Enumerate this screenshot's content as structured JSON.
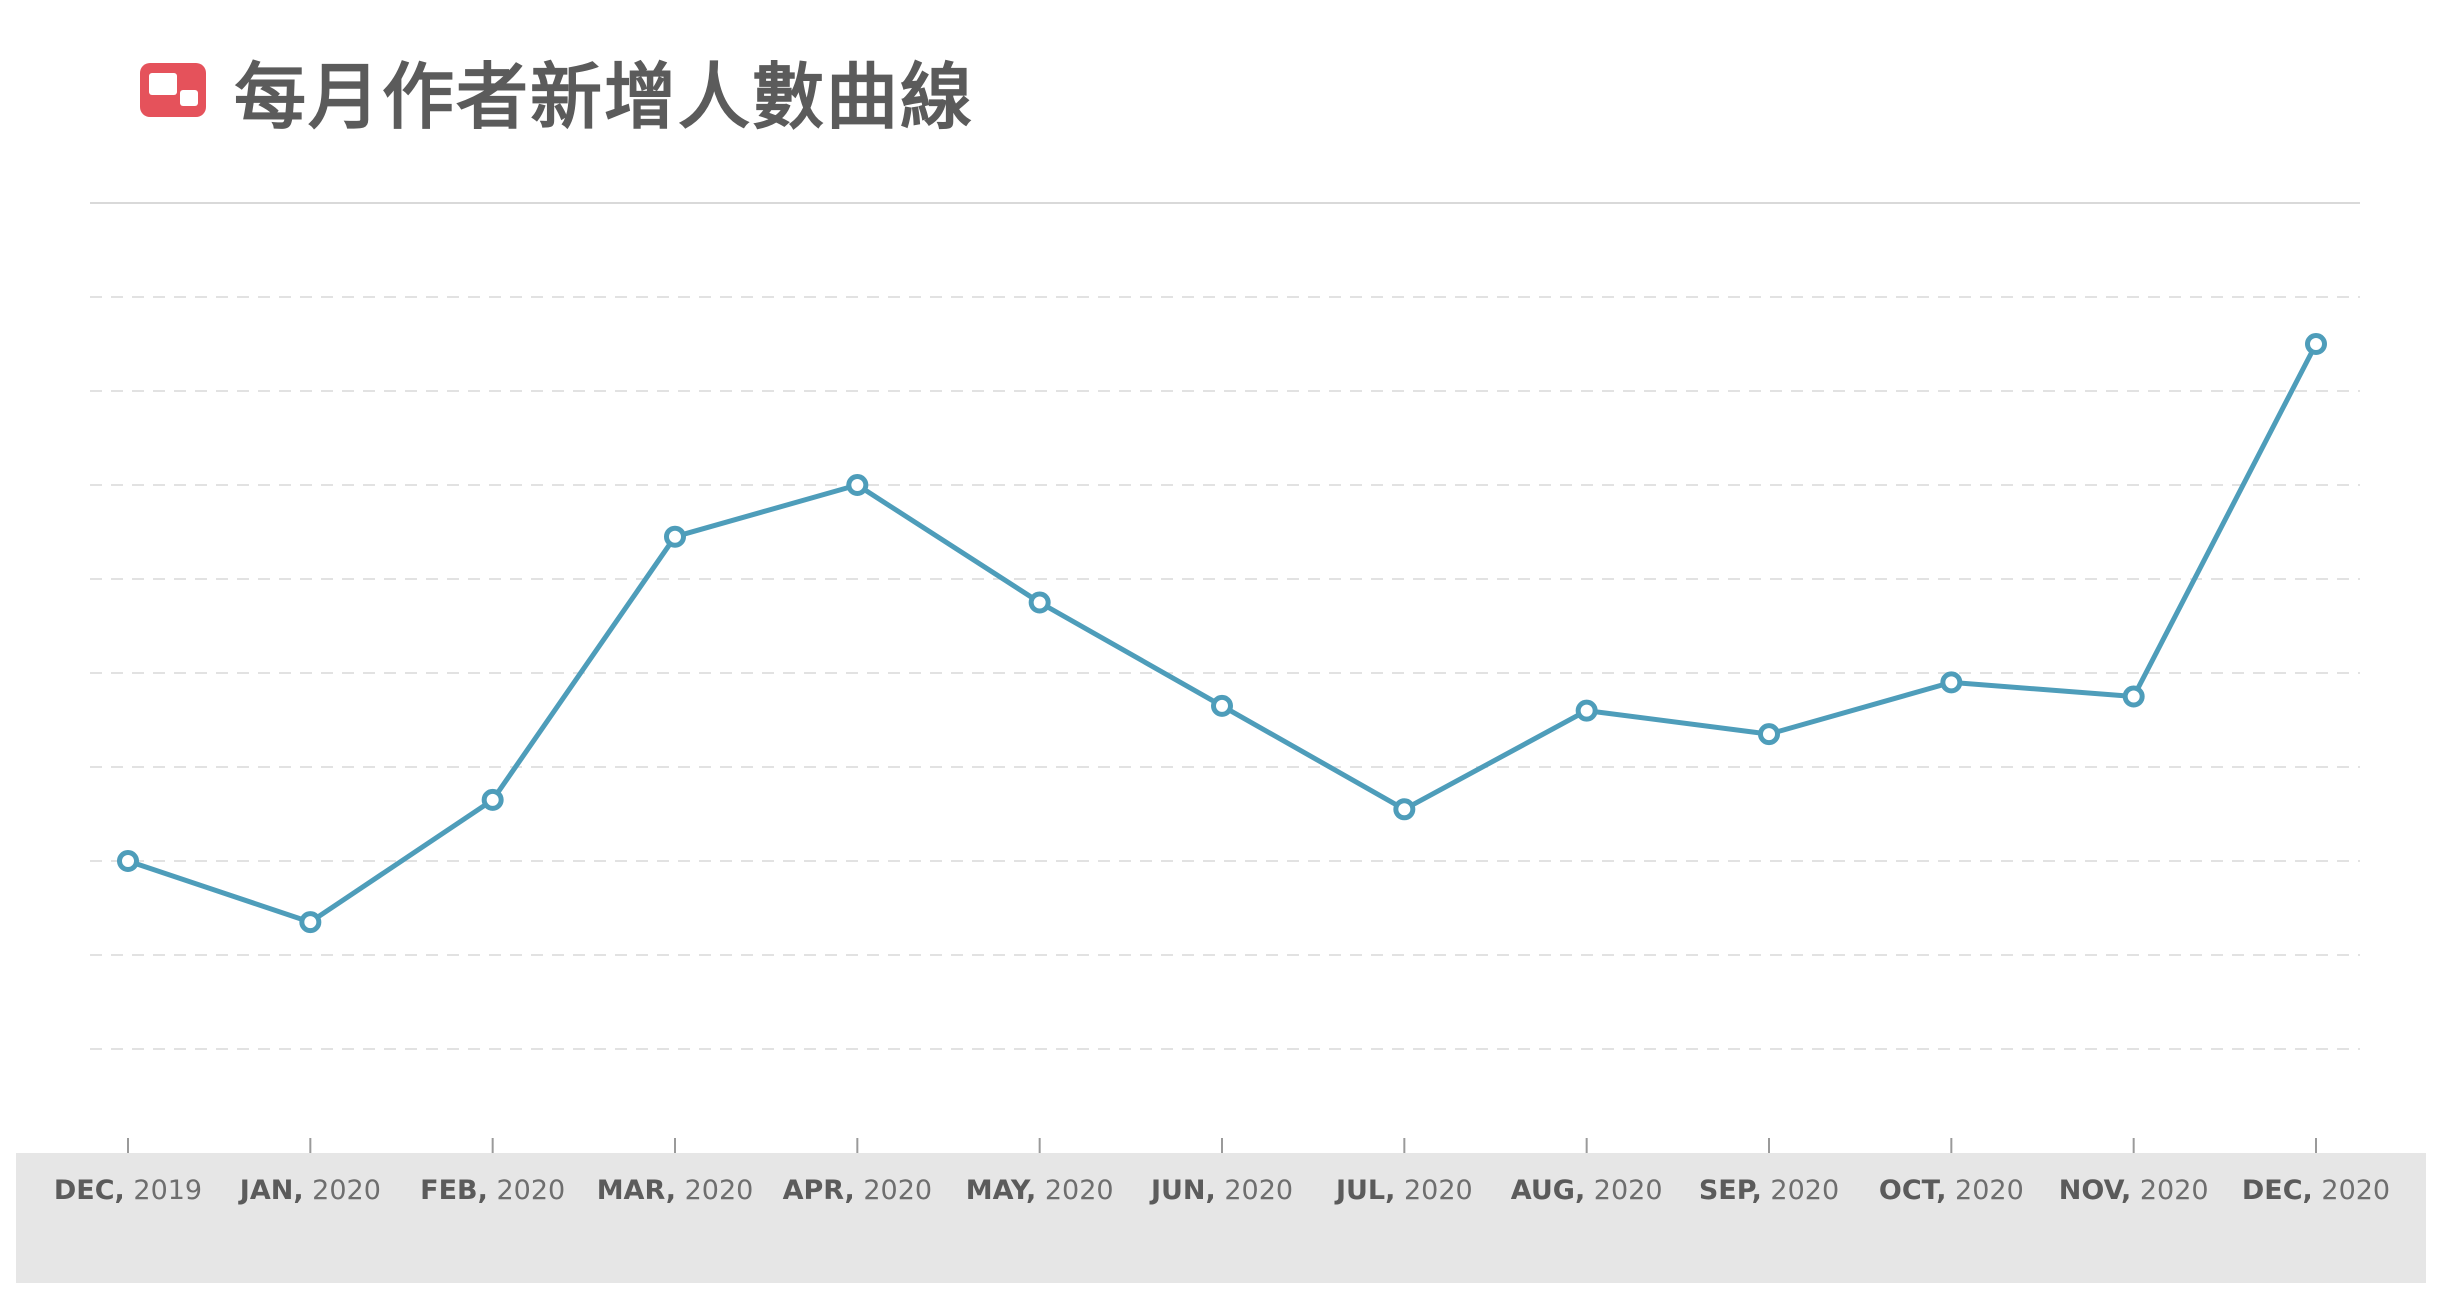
{
  "title": "每月作者新增人數曲線",
  "title_icon": "chart-window-icon",
  "colors": {
    "accent_icon": "#e5525b",
    "line": "#4e9dba",
    "grid": "#d9d9d9",
    "axis_band": "#e6e6e6",
    "title_text": "#5b5b5b"
  },
  "chart_data": {
    "type": "line",
    "title": "每月作者新增人數曲線",
    "xlabel": "",
    "ylabel": "",
    "ylim": [
      0,
      10
    ],
    "grid": true,
    "legend": "none",
    "categories": [
      {
        "month": "DEC,",
        "year": "2019"
      },
      {
        "month": "JAN,",
        "year": "2020"
      },
      {
        "month": "FEB,",
        "year": "2020"
      },
      {
        "month": "MAR,",
        "year": "2020"
      },
      {
        "month": "APR,",
        "year": "2020"
      },
      {
        "month": "MAY,",
        "year": "2020"
      },
      {
        "month": "JUN,",
        "year": "2020"
      },
      {
        "month": "JUL,",
        "year": "2020"
      },
      {
        "month": "AUG,",
        "year": "2020"
      },
      {
        "month": "SEP,",
        "year": "2020"
      },
      {
        "month": "OCT,",
        "year": "2020"
      },
      {
        "month": "NOV,",
        "year": "2020"
      },
      {
        "month": "DEC,",
        "year": "2020"
      }
    ],
    "values": [
      3.0,
      2.35,
      3.65,
      6.45,
      7.0,
      5.75,
      4.65,
      3.55,
      4.6,
      4.35,
      4.9,
      4.75,
      8.5
    ]
  }
}
